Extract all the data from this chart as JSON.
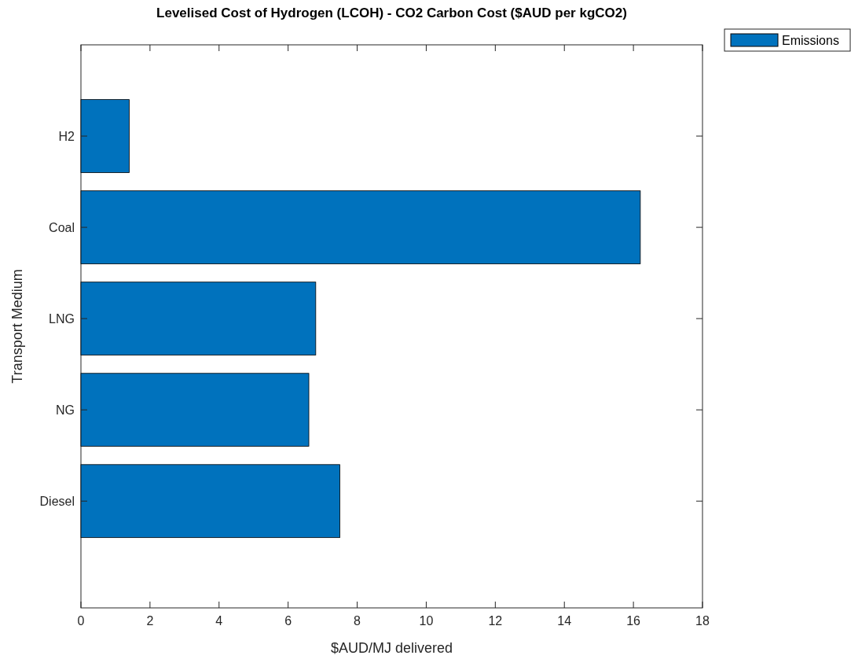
{
  "chart_data": {
    "type": "bar",
    "orientation": "horizontal",
    "title": "Levelised Cost of Hydrogen (LCOH) - CO2 Carbon Cost ($AUD per kgCO2)",
    "xlabel": "$AUD/MJ delivered",
    "ylabel": "Transport Medium",
    "categories": [
      "H2",
      "Coal",
      "LNG",
      "NG",
      "Diesel"
    ],
    "series": [
      {
        "name": "Emissions",
        "color": "#0072bd",
        "values": [
          1.4,
          16.2,
          6.8,
          6.6,
          7.5
        ]
      }
    ],
    "xlim": [
      0,
      18
    ],
    "xticks": [
      0,
      2,
      4,
      6,
      8,
      10,
      12,
      14,
      16,
      18
    ],
    "legend": "top right"
  }
}
